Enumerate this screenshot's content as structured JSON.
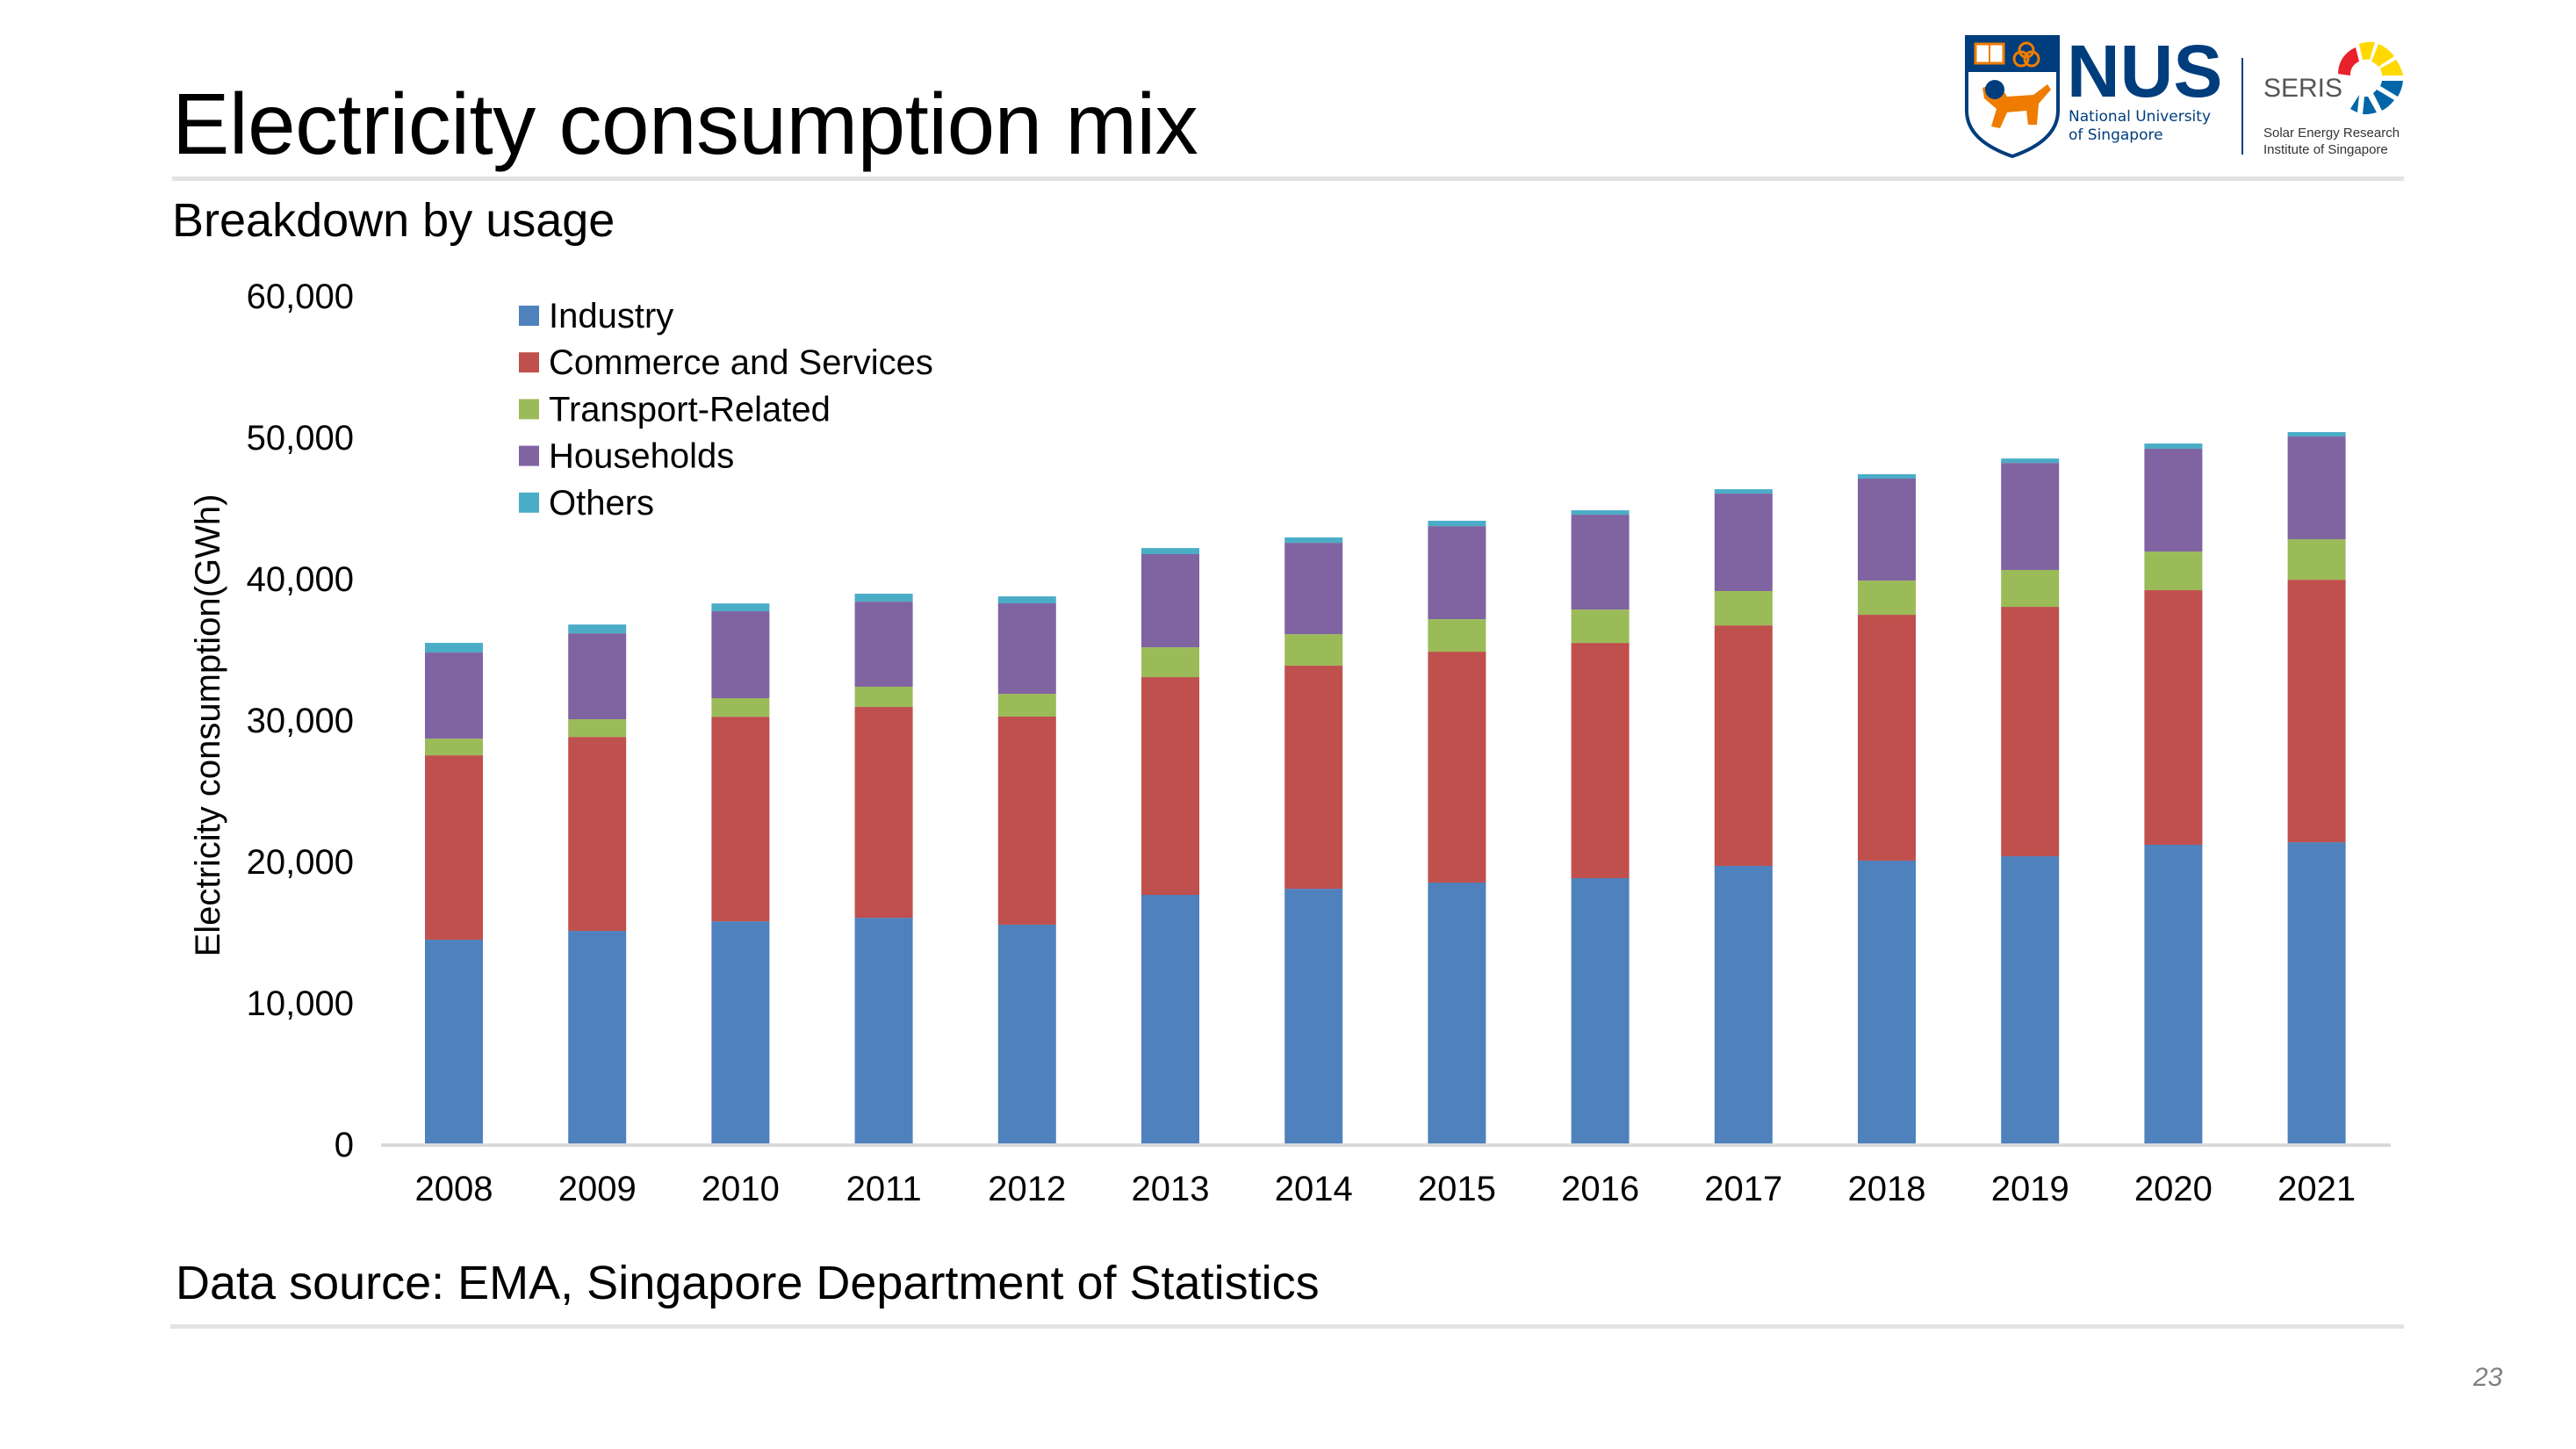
{
  "slide": {
    "title": "Electricity consumption mix",
    "subtitle": "Breakdown by usage",
    "source": "Data source: EMA, Singapore Department of Statistics",
    "page_number": "23"
  },
  "logos": {
    "nus": {
      "wordmark": "NUS",
      "line1": "National University",
      "line2": "of Singapore",
      "blue": "#003d7c",
      "orange": "#ef7c00"
    },
    "seris": {
      "wordmark": "SERIS",
      "line1": "Solar Energy Research",
      "line2": "Institute of Singapore",
      "red": "#e8212b",
      "yellow": "#ffd800",
      "blue": "#0066a8"
    }
  },
  "chart_data": {
    "type": "bar",
    "stacked": true,
    "title": "",
    "xlabel": "",
    "ylabel": "Electricity consumption(GWh)",
    "ylim": [
      0,
      60000
    ],
    "yticks": [
      0,
      10000,
      20000,
      30000,
      40000,
      50000,
      60000
    ],
    "ytick_labels": [
      "0",
      "10,000",
      "20,000",
      "30,000",
      "40,000",
      "50,000",
      "60,000"
    ],
    "grid": false,
    "legend_position": "top-left",
    "categories": [
      "2008",
      "2009",
      "2010",
      "2011",
      "2012",
      "2013",
      "2014",
      "2015",
      "2016",
      "2017",
      "2018",
      "2019",
      "2020",
      "2021"
    ],
    "series": [
      {
        "name": "Industry",
        "color": "#4f81bd",
        "values": [
          14470,
          15090,
          15770,
          16020,
          15530,
          17640,
          18070,
          18510,
          18820,
          19690,
          20060,
          20370,
          21180,
          21360
        ]
      },
      {
        "name": "Commerce and Services",
        "color": "#c0504d",
        "values": [
          13040,
          13720,
          14470,
          14910,
          14720,
          15400,
          15780,
          16330,
          16640,
          17010,
          17390,
          17640,
          18010,
          18570
        ]
      },
      {
        "name": "Transport-Related",
        "color": "#9bbb59",
        "values": [
          1180,
          1250,
          1310,
          1430,
          1610,
          2110,
          2230,
          2300,
          2360,
          2430,
          2420,
          2610,
          2730,
          2860
        ]
      },
      {
        "name": "Households",
        "color": "#8064a2",
        "values": [
          6090,
          6080,
          6150,
          6020,
          6400,
          6590,
          6460,
          6580,
          6710,
          6890,
          7210,
          7570,
          7270,
          7270
        ]
      },
      {
        "name": "Others",
        "color": "#4bacc6",
        "values": [
          680,
          620,
          550,
          560,
          490,
          430,
          380,
          380,
          310,
          310,
          310,
          310,
          370,
          310
        ]
      }
    ]
  }
}
